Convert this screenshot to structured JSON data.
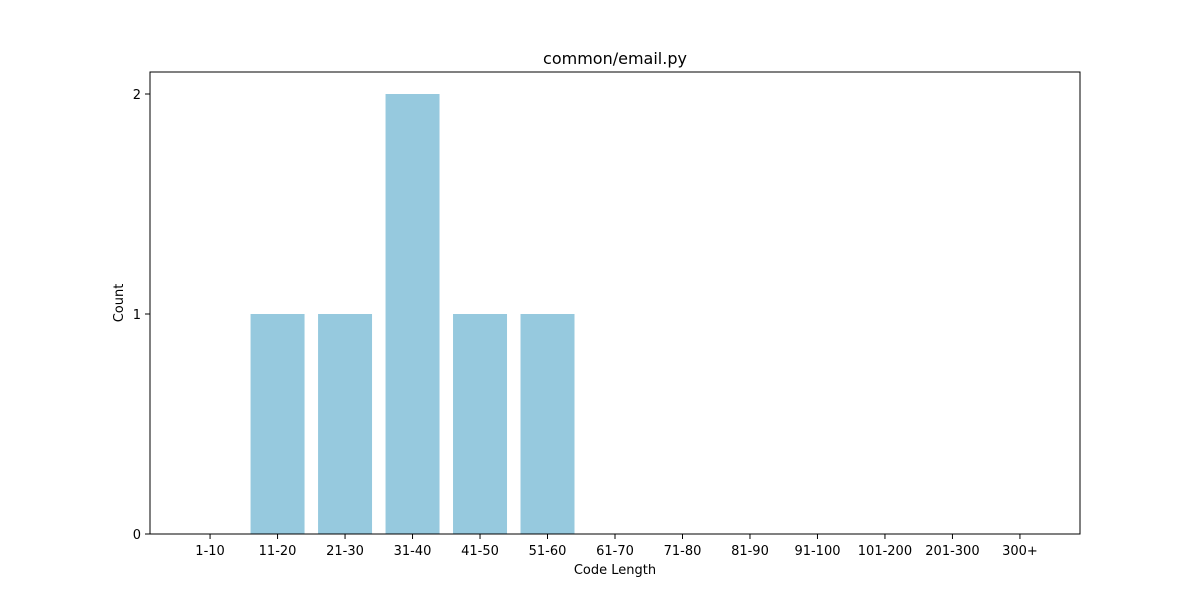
{
  "chart_data": {
    "type": "bar",
    "title": "common/email.py",
    "xlabel": "Code Length",
    "ylabel": "Count",
    "categories": [
      "1-10",
      "11-20",
      "21-30",
      "31-40",
      "41-50",
      "51-60",
      "61-70",
      "71-80",
      "81-90",
      "91-100",
      "101-200",
      "201-300",
      "300+"
    ],
    "values": [
      0,
      1,
      1,
      2,
      1,
      1,
      0,
      0,
      0,
      0,
      0,
      0,
      0
    ],
    "ylim": [
      0,
      2.1
    ],
    "yticks": [
      0,
      1,
      2
    ],
    "grid": false,
    "legend": "none",
    "bar_color": "#96c9de"
  }
}
